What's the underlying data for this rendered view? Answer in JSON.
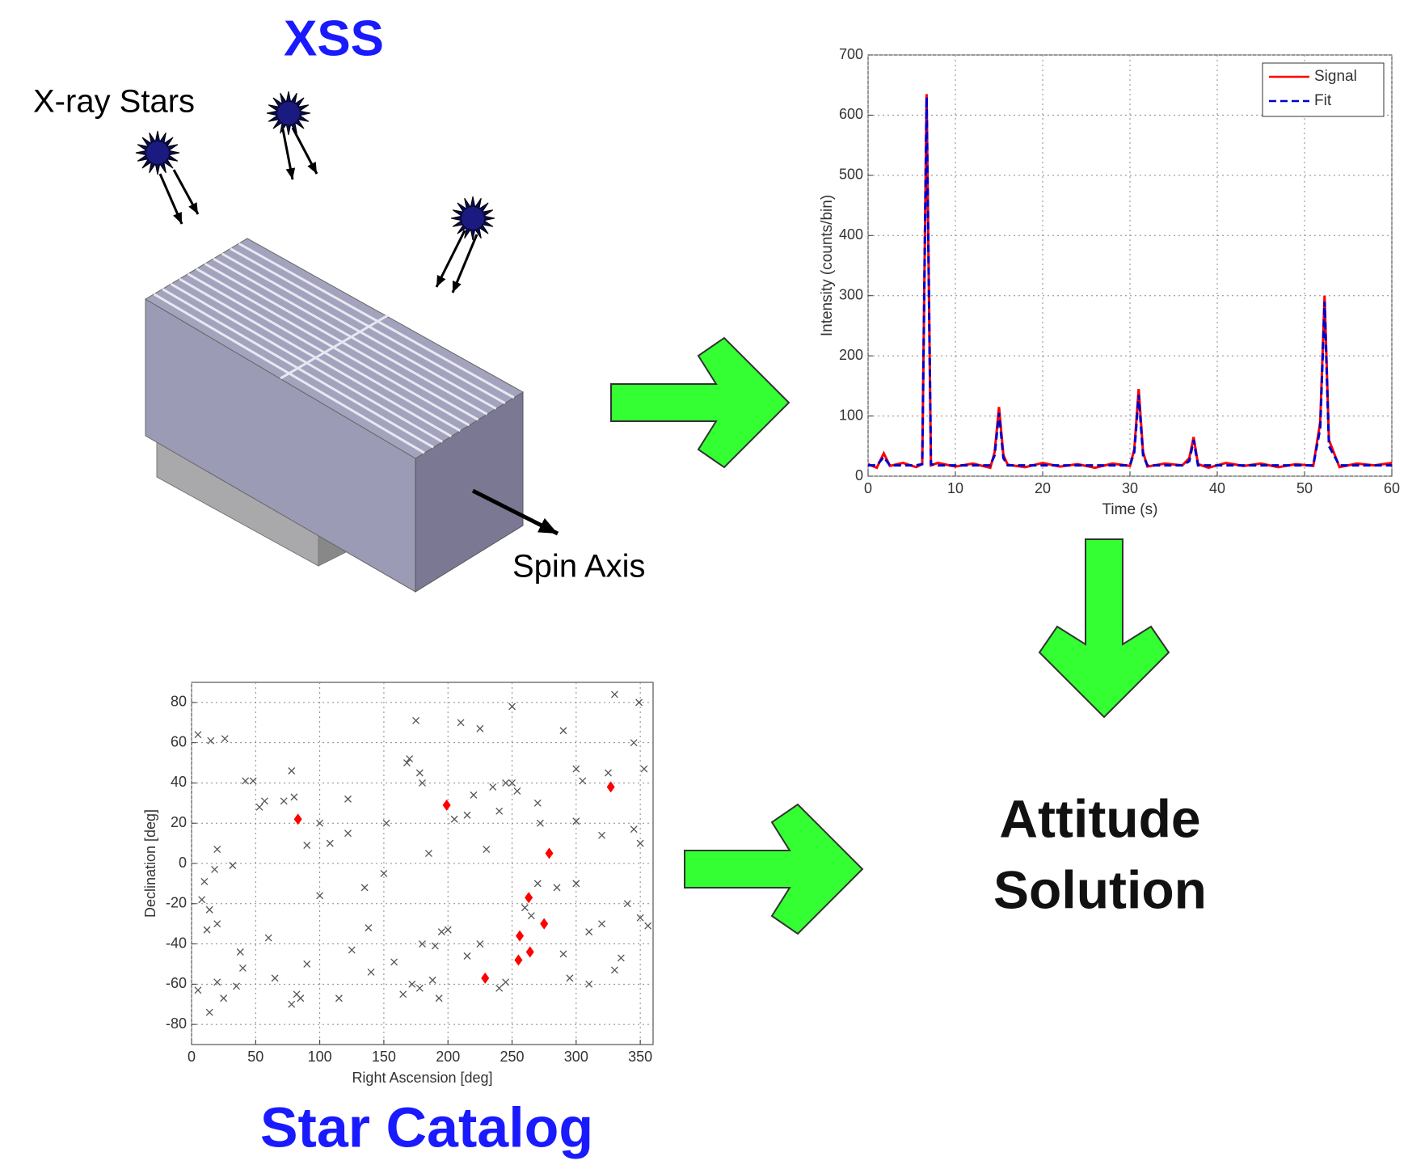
{
  "title": "XSS",
  "labels": {
    "xray_stars": "X-ray Stars",
    "spin_axis": "Spin Axis",
    "star_catalog": "Star Catalog",
    "attitude_solution": [
      "Attitude",
      "Solution"
    ]
  },
  "chart_data": [
    {
      "type": "line",
      "xlabel": "Time (s)",
      "ylabel": "Intensity (counts/bin)",
      "grid": true,
      "legend": "upper right",
      "x": [
        0,
        1,
        1.8,
        2.5,
        4,
        5.5,
        6.2,
        6.7,
        7.2,
        8,
        10,
        12,
        14,
        14.5,
        15,
        15.5,
        16,
        18,
        20,
        22,
        24,
        26,
        28,
        30,
        30.5,
        31,
        31.5,
        32,
        34,
        36,
        36.8,
        37.3,
        37.8,
        39,
        41,
        43,
        45,
        47,
        49,
        51,
        51.8,
        52.3,
        52.8,
        54,
        56,
        58,
        60
      ],
      "series": [
        {
          "name": "Signal",
          "color": "#ff0000",
          "dash": false,
          "values": [
            20,
            14,
            38,
            17,
            22,
            15,
            20,
            635,
            18,
            22,
            16,
            21,
            14,
            40,
            115,
            35,
            19,
            15,
            22,
            16,
            20,
            14,
            21,
            17,
            45,
            145,
            40,
            16,
            21,
            18,
            30,
            65,
            20,
            14,
            22,
            17,
            21,
            15,
            20,
            17,
            90,
            300,
            60,
            15,
            21,
            18,
            22
          ]
        },
        {
          "name": "Fit",
          "color": "#0000cc",
          "dash": true,
          "values": [
            18,
            18,
            32,
            18,
            18,
            18,
            20,
            630,
            20,
            18,
            18,
            18,
            18,
            35,
            105,
            30,
            18,
            18,
            18,
            18,
            18,
            18,
            18,
            18,
            40,
            135,
            35,
            18,
            18,
            18,
            25,
            60,
            18,
            18,
            18,
            18,
            18,
            18,
            18,
            18,
            80,
            290,
            50,
            18,
            18,
            18,
            18
          ]
        }
      ],
      "xlim": [
        0,
        60
      ],
      "xticks": [
        0,
        10,
        20,
        30,
        40,
        50,
        60
      ],
      "ylim": [
        0,
        700
      ],
      "yticks": [
        0,
        100,
        200,
        300,
        400,
        500,
        600,
        700
      ]
    },
    {
      "type": "scatter",
      "xlabel": "Right Ascension [deg]",
      "ylabel": "Declination [deg]",
      "grid": true,
      "series": [
        {
          "color": "#555555",
          "marker": "x",
          "x": [
            5,
            15,
            26,
            42,
            48,
            53,
            57,
            72,
            78,
            80,
            90,
            32,
            20,
            18,
            10,
            8,
            14,
            20,
            12,
            38,
            40,
            35,
            5,
            20,
            25,
            14,
            60,
            65,
            78,
            82,
            85,
            90,
            100,
            115,
            125,
            135,
            140,
            138,
            150,
            158,
            165,
            172,
            178,
            188,
            193,
            180,
            190,
            195,
            200,
            215,
            225,
            240,
            245,
            230,
            235,
            245,
            250,
            254,
            240,
            270,
            272,
            300,
            310,
            320,
            330,
            335,
            340,
            350,
            356,
            345,
            350,
            353,
            345,
            349,
            330,
            290,
            300,
            300,
            305,
            320,
            325,
            310,
            295,
            290,
            285,
            260,
            265,
            270,
            180,
            178,
            170,
            175,
            210,
            225,
            250,
            122,
            122,
            108,
            100,
            152,
            168,
            220,
            205,
            215,
            185
          ],
          "values": [
            64,
            61,
            62,
            41,
            41,
            28,
            31,
            31,
            46,
            33,
            9,
            -1,
            7,
            -3,
            -9,
            -18,
            -23,
            -30,
            -33,
            -44,
            -52,
            -61,
            -63,
            -59,
            -67,
            -74,
            -37,
            -57,
            -70,
            -65,
            -67,
            -50,
            -16,
            -67,
            -43,
            -12,
            -54,
            -32,
            -5,
            -49,
            -65,
            -60,
            -62,
            -58,
            -67,
            -40,
            -41,
            -34,
            -33,
            -46,
            -40,
            -62,
            -59,
            7,
            38,
            40,
            40,
            36,
            26,
            30,
            20,
            -10,
            -34,
            -30,
            -53,
            -47,
            -20,
            -27,
            -31,
            17,
            10,
            47,
            60,
            80,
            84,
            66,
            21,
            47,
            41,
            14,
            45,
            -60,
            -57,
            -45,
            -12,
            -22,
            -26,
            -10,
            40,
            45,
            52,
            71,
            70,
            67,
            78,
            32,
            15,
            10,
            20,
            20,
            50,
            34,
            22,
            24,
            5
          ]
        },
        {
          "color": "#ff0000",
          "marker": "diamond",
          "x": [
            83,
            199,
            327,
            279,
            263,
            256,
            275,
            264,
            255,
            229
          ],
          "values": [
            22,
            29,
            38,
            5,
            -17,
            -36,
            -30,
            -44,
            -48,
            -57
          ]
        }
      ],
      "xlim": [
        0,
        360
      ],
      "xticks": [
        0,
        50,
        100,
        150,
        200,
        250,
        300,
        350
      ],
      "ylim": [
        -90,
        90
      ],
      "yticks": [
        -80,
        -60,
        -40,
        -20,
        0,
        20,
        40,
        60,
        80
      ]
    }
  ]
}
